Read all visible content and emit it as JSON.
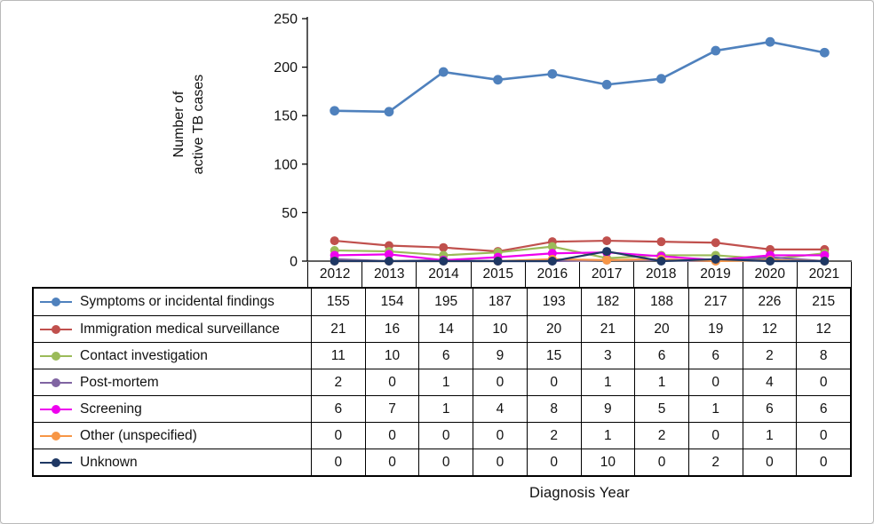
{
  "chart_data": {
    "type": "line",
    "title": "",
    "xlabel": "Diagnosis Year",
    "ylabel": "Number of active TB cases",
    "ylabel_lines": [
      "Number of",
      "active TB cases"
    ],
    "categories": [
      "2012",
      "2013",
      "2014",
      "2015",
      "2016",
      "2017",
      "2018",
      "2019",
      "2020",
      "2021"
    ],
    "ylim": [
      0,
      250
    ],
    "yticks": [
      0,
      50,
      100,
      150,
      200,
      250
    ],
    "grid": false,
    "legend_position": "table-left",
    "series": [
      {
        "name": "Symptoms or incidental findings",
        "color": "#4F81BD",
        "values": [
          155,
          154,
          195,
          187,
          193,
          182,
          188,
          217,
          226,
          215
        ]
      },
      {
        "name": "Immigration medical surveillance",
        "color": "#C0504D",
        "values": [
          21,
          16,
          14,
          10,
          20,
          21,
          20,
          19,
          12,
          12
        ]
      },
      {
        "name": "Contact investigation",
        "color": "#9BBB59",
        "values": [
          11,
          10,
          6,
          9,
          15,
          3,
          6,
          6,
          2,
          8
        ]
      },
      {
        "name": "Post-mortem",
        "color": "#8064A2",
        "values": [
          2,
          0,
          1,
          0,
          0,
          1,
          1,
          0,
          4,
          0
        ]
      },
      {
        "name": "Screening",
        "color": "#EE00EE",
        "values": [
          6,
          7,
          1,
          4,
          8,
          9,
          5,
          1,
          6,
          6
        ]
      },
      {
        "name": "Other (unspecified)",
        "color": "#F79646",
        "values": [
          0,
          0,
          0,
          0,
          2,
          1,
          2,
          0,
          1,
          0
        ]
      },
      {
        "name": "Unknown",
        "color": "#1F3864",
        "values": [
          0,
          0,
          0,
          0,
          0,
          10,
          0,
          2,
          0,
          0
        ]
      }
    ]
  }
}
